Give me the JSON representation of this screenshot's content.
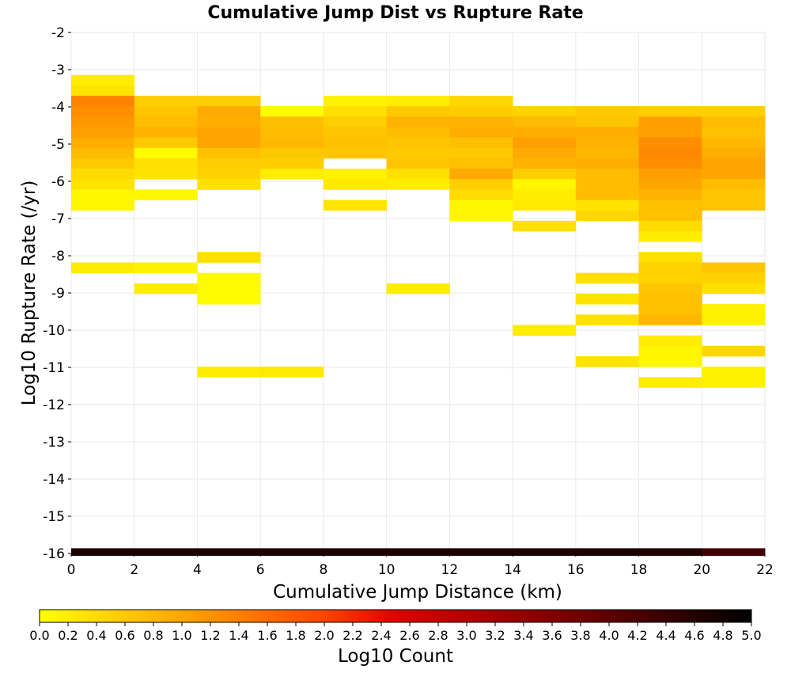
{
  "chart_data": {
    "type": "heatmap",
    "title": "Cumulative Jump Dist vs Rupture Rate",
    "xlabel": "Cumulative Jump Distance (km)",
    "ylabel": "Log10 Rupture Rate (/yr)",
    "xlim": [
      0,
      22
    ],
    "ylim": [
      -16,
      -2
    ],
    "x_ticks": [
      "0",
      "2",
      "4",
      "6",
      "8",
      "10",
      "12",
      "14",
      "16",
      "18",
      "20",
      "22"
    ],
    "y_ticks": [
      "-2",
      "-3",
      "-4",
      "-5",
      "-6",
      "-7",
      "-8",
      "-9",
      "-10",
      "-11",
      "-12",
      "-13",
      "-14",
      "-15",
      "-16"
    ],
    "x_bin_width": 2,
    "y_bin_height": 0.28,
    "colorbar": {
      "label": "Log10 Count",
      "min": 0.0,
      "max": 5.0,
      "ticks": [
        "0.0",
        "0.2",
        "0.4",
        "0.6",
        "0.8",
        "1.0",
        "1.2",
        "1.4",
        "1.6",
        "1.8",
        "2.0",
        "2.2",
        "2.4",
        "2.6",
        "2.8",
        "3.0",
        "3.2",
        "3.4",
        "3.6",
        "3.8",
        "4.0",
        "4.2",
        "4.4",
        "4.6",
        "4.8",
        "5.0"
      ],
      "colormap": "hot reversed (yellow to black)"
    },
    "columns": [
      {
        "x": 0,
        "cells": [
          {
            "y": -3.28,
            "v": 0.2
          },
          {
            "y": -3.56,
            "v": 0.3
          },
          {
            "y": -3.84,
            "v": 1.35
          },
          {
            "y": -4.12,
            "v": 1.25
          },
          {
            "y": -4.4,
            "v": 1.15
          },
          {
            "y": -4.68,
            "v": 1.05
          },
          {
            "y": -4.96,
            "v": 0.9
          },
          {
            "y": -5.24,
            "v": 0.75
          },
          {
            "y": -5.52,
            "v": 0.6
          },
          {
            "y": -5.8,
            "v": 0.4
          },
          {
            "y": -6.08,
            "v": 0.3
          },
          {
            "y": -6.36,
            "v": 0.1
          },
          {
            "y": -6.64,
            "v": 0.1
          },
          {
            "y": -8.32,
            "v": 0.2
          }
        ]
      },
      {
        "x": 2,
        "cells": [
          {
            "y": -3.84,
            "v": 0.55
          },
          {
            "y": -4.12,
            "v": 0.65
          },
          {
            "y": -4.4,
            "v": 0.75
          },
          {
            "y": -4.68,
            "v": 0.85
          },
          {
            "y": -4.96,
            "v": 0.6
          },
          {
            "y": -5.24,
            "v": 0.05
          },
          {
            "y": -5.52,
            "v": 0.35
          },
          {
            "y": -5.8,
            "v": 0.3
          },
          {
            "y": -6.36,
            "v": 0.1
          },
          {
            "y": -8.32,
            "v": 0.15
          },
          {
            "y": -8.88,
            "v": 0.2
          }
        ]
      },
      {
        "x": 4,
        "cells": [
          {
            "y": -3.84,
            "v": 0.55
          },
          {
            "y": -4.12,
            "v": 0.95
          },
          {
            "y": -4.4,
            "v": 0.9
          },
          {
            "y": -4.68,
            "v": 1.0
          },
          {
            "y": -4.96,
            "v": 1.0
          },
          {
            "y": -5.24,
            "v": 0.7
          },
          {
            "y": -5.52,
            "v": 0.55
          },
          {
            "y": -5.8,
            "v": 0.5
          },
          {
            "y": -6.08,
            "v": 0.35
          },
          {
            "y": -8.04,
            "v": 0.35
          },
          {
            "y": -8.6,
            "v": 0.05
          },
          {
            "y": -8.88,
            "v": 0.05
          },
          {
            "y": -9.16,
            "v": 0.05
          },
          {
            "y": -11.12,
            "v": 0.2
          }
        ]
      },
      {
        "x": 6,
        "cells": [
          {
            "y": -4.12,
            "v": 0.05
          },
          {
            "y": -4.4,
            "v": 0.7
          },
          {
            "y": -4.68,
            "v": 0.75
          },
          {
            "y": -4.96,
            "v": 0.8
          },
          {
            "y": -5.24,
            "v": 0.6
          },
          {
            "y": -5.52,
            "v": 0.55
          },
          {
            "y": -5.8,
            "v": 0.2
          },
          {
            "y": -11.12,
            "v": 0.25
          }
        ]
      },
      {
        "x": 8,
        "cells": [
          {
            "y": -3.84,
            "v": 0.15
          },
          {
            "y": -4.12,
            "v": 0.35
          },
          {
            "y": -4.4,
            "v": 0.55
          },
          {
            "y": -4.68,
            "v": 0.65
          },
          {
            "y": -4.96,
            "v": 0.7
          },
          {
            "y": -5.24,
            "v": 0.65
          },
          {
            "y": -5.8,
            "v": 0.15
          },
          {
            "y": -6.08,
            "v": 0.25
          },
          {
            "y": -6.64,
            "v": 0.3
          }
        ]
      },
      {
        "x": 10,
        "cells": [
          {
            "y": -3.84,
            "v": 0.2
          },
          {
            "y": -4.12,
            "v": 0.6
          },
          {
            "y": -4.4,
            "v": 0.85
          },
          {
            "y": -4.68,
            "v": 0.75
          },
          {
            "y": -4.96,
            "v": 0.65
          },
          {
            "y": -5.24,
            "v": 0.6
          },
          {
            "y": -5.52,
            "v": 0.65
          },
          {
            "y": -5.8,
            "v": 0.35
          },
          {
            "y": -6.08,
            "v": 0.2
          },
          {
            "y": -8.88,
            "v": 0.2
          }
        ]
      },
      {
        "x": 12,
        "cells": [
          {
            "y": -3.84,
            "v": 0.45
          },
          {
            "y": -4.12,
            "v": 0.55
          },
          {
            "y": -4.4,
            "v": 0.85
          },
          {
            "y": -4.68,
            "v": 0.9
          },
          {
            "y": -4.96,
            "v": 0.7
          },
          {
            "y": -5.24,
            "v": 0.6
          },
          {
            "y": -5.52,
            "v": 0.7
          },
          {
            "y": -5.8,
            "v": 0.95
          },
          {
            "y": -6.08,
            "v": 0.55
          },
          {
            "y": -6.36,
            "v": 0.4
          },
          {
            "y": -6.64,
            "v": 0.1
          },
          {
            "y": -6.92,
            "v": 0.1
          }
        ]
      },
      {
        "x": 14,
        "cells": [
          {
            "y": -4.12,
            "v": 0.5
          },
          {
            "y": -4.4,
            "v": 0.75
          },
          {
            "y": -4.68,
            "v": 0.9
          },
          {
            "y": -4.96,
            "v": 1.05
          },
          {
            "y": -5.24,
            "v": 0.95
          },
          {
            "y": -5.52,
            "v": 0.85
          },
          {
            "y": -5.8,
            "v": 0.55
          },
          {
            "y": -6.08,
            "v": 0.1
          },
          {
            "y": -6.36,
            "v": 0.2
          },
          {
            "y": -6.64,
            "v": 0.25
          },
          {
            "y": -7.2,
            "v": 0.35
          },
          {
            "y": -10.0,
            "v": 0.2
          }
        ]
      },
      {
        "x": 16,
        "cells": [
          {
            "y": -4.12,
            "v": 0.6
          },
          {
            "y": -4.4,
            "v": 0.65
          },
          {
            "y": -4.68,
            "v": 0.9
          },
          {
            "y": -4.96,
            "v": 0.85
          },
          {
            "y": -5.24,
            "v": 0.8
          },
          {
            "y": -5.52,
            "v": 0.9
          },
          {
            "y": -5.8,
            "v": 0.75
          },
          {
            "y": -6.08,
            "v": 0.75
          },
          {
            "y": -6.36,
            "v": 0.75
          },
          {
            "y": -6.64,
            "v": 0.3
          },
          {
            "y": -6.92,
            "v": 0.45
          },
          {
            "y": -8.6,
            "v": 0.35
          },
          {
            "y": -9.16,
            "v": 0.3
          },
          {
            "y": -9.72,
            "v": 0.35
          },
          {
            "y": -10.84,
            "v": 0.3
          }
        ]
      },
      {
        "x": 18,
        "cells": [
          {
            "y": -4.12,
            "v": 0.55
          },
          {
            "y": -4.4,
            "v": 1.05
          },
          {
            "y": -4.68,
            "v": 1.05
          },
          {
            "y": -4.96,
            "v": 1.25
          },
          {
            "y": -5.24,
            "v": 1.3
          },
          {
            "y": -5.52,
            "v": 1.25
          },
          {
            "y": -5.8,
            "v": 1.05
          },
          {
            "y": -6.08,
            "v": 1.0
          },
          {
            "y": -6.36,
            "v": 0.85
          },
          {
            "y": -6.64,
            "v": 0.7
          },
          {
            "y": -6.92,
            "v": 0.7
          },
          {
            "y": -7.2,
            "v": 0.4
          },
          {
            "y": -7.48,
            "v": 0.2
          },
          {
            "y": -8.04,
            "v": 0.35
          },
          {
            "y": -8.32,
            "v": 0.5
          },
          {
            "y": -8.6,
            "v": 0.5
          },
          {
            "y": -8.88,
            "v": 0.65
          },
          {
            "y": -9.16,
            "v": 0.7
          },
          {
            "y": -9.44,
            "v": 0.7
          },
          {
            "y": -9.72,
            "v": 0.8
          },
          {
            "y": -10.28,
            "v": 0.2
          },
          {
            "y": -10.56,
            "v": 0.1
          },
          {
            "y": -10.84,
            "v": 0.1
          },
          {
            "y": -11.4,
            "v": 0.2
          }
        ]
      },
      {
        "x": 20,
        "cells": [
          {
            "y": -4.12,
            "v": 0.55
          },
          {
            "y": -4.4,
            "v": 0.75
          },
          {
            "y": -4.68,
            "v": 0.7
          },
          {
            "y": -4.96,
            "v": 0.8
          },
          {
            "y": -5.24,
            "v": 0.9
          },
          {
            "y": -5.52,
            "v": 1.0
          },
          {
            "y": -5.8,
            "v": 1.0
          },
          {
            "y": -6.08,
            "v": 0.75
          },
          {
            "y": -6.36,
            "v": 0.65
          },
          {
            "y": -6.64,
            "v": 0.65
          },
          {
            "y": -8.32,
            "v": 0.65
          },
          {
            "y": -8.6,
            "v": 0.5
          },
          {
            "y": -8.88,
            "v": 0.35
          },
          {
            "y": -9.44,
            "v": 0.15
          },
          {
            "y": -9.72,
            "v": 0.15
          },
          {
            "y": -10.56,
            "v": 0.45
          },
          {
            "y": -11.12,
            "v": 0.15
          },
          {
            "y": -11.4,
            "v": 0.15
          }
        ]
      }
    ],
    "baseline_row": {
      "y": -16,
      "values": [
        {
          "x": 0,
          "v": 4.7
        },
        {
          "x": 2,
          "v": 4.7
        },
        {
          "x": 4,
          "v": 4.7
        },
        {
          "x": 6,
          "v": 4.7
        },
        {
          "x": 8,
          "v": 4.7
        },
        {
          "x": 10,
          "v": 4.7
        },
        {
          "x": 12,
          "v": 4.7
        },
        {
          "x": 14,
          "v": 4.7
        },
        {
          "x": 16,
          "v": 4.7
        },
        {
          "x": 18,
          "v": 4.65
        },
        {
          "x": 20,
          "v": 4.3
        }
      ]
    }
  }
}
